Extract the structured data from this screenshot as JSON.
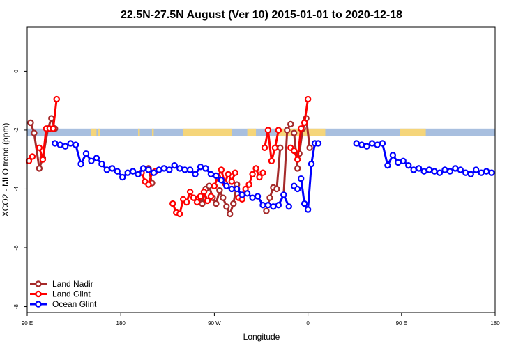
{
  "chart_data": {
    "type": "line",
    "title": "22.5N-27.5N August (Ver 10)   2015-01-01 to 2020-12-18",
    "xlabel": "Longitude",
    "ylabel": "XCO2 - MLO trend (ppm)",
    "xlim": [
      -90,
      180
    ],
    "ylim": [
      -8.2,
      1.5
    ],
    "x_ticks": [
      -90,
      -36,
      18,
      72,
      126,
      180
    ],
    "x_tick_labels": [
      "90 E",
      "180",
      "90 W",
      "0",
      "90 E",
      "180"
    ],
    "y_ticks": [
      0,
      -2,
      -4,
      -6,
      -8
    ],
    "y_tick_labels": [
      "0",
      "-2",
      "-4",
      "-6",
      "-8"
    ],
    "land_band": {
      "y_min": -2.2,
      "y_max": -1.95,
      "ocean_color": "#a8bfdf",
      "land_color": "#f5d57a",
      "land_segments": [
        [
          -53,
          -50
        ],
        [
          -49,
          -48
        ],
        [
          -26,
          -25
        ],
        [
          -18,
          -17
        ],
        [
          0,
          28
        ],
        [
          37,
          42
        ],
        [
          54,
          82
        ],
        [
          125,
          140
        ]
      ]
    },
    "legend": {
      "position": "bottom-left"
    },
    "series": [
      {
        "name": "Land Nadir",
        "color": "#a52a2a",
        "segments": [
          {
            "x": [
              -88,
              -86,
              -83,
              -81,
              -78,
              -76,
              -74
            ],
            "y": [
              -1.75,
              -2.1,
              -3.3,
              -2.95,
              -1.95,
              -1.6,
              -1.95
            ]
          },
          {
            "x": [
              -20,
              -18
            ],
            "y": [
              -3.3,
              -3.8
            ]
          },
          {
            "x": [
              9,
              11,
              13,
              15,
              17,
              19,
              21,
              23,
              25,
              27,
              29,
              31
            ],
            "y": [
              -4.3,
              -4.5,
              -4.0,
              -3.9,
              -4.3,
              -4.5,
              -4.05,
              -4.3,
              -4.6,
              -4.85,
              -4.5,
              -3.85
            ]
          },
          {
            "x": [
              48,
              50,
              52,
              54,
              56
            ],
            "y": [
              -4.75,
              -4.3,
              -3.95,
              -4.0,
              -2.6
            ]
          },
          {
            "x": [
              58,
              60,
              62
            ],
            "y": [
              -4.2,
              -2.0,
              -1.8
            ]
          },
          {
            "x": [
              64,
              66
            ],
            "y": [
              -2.1,
              -3.3
            ]
          },
          {
            "x": [
              67,
              69,
              71,
              73
            ],
            "y": [
              -2.8,
              -1.95,
              -1.6,
              -2.6
            ]
          }
        ]
      },
      {
        "name": "Land Glint",
        "color": "#ff0000",
        "segments": [
          {
            "x": [
              -89,
              -87
            ],
            "y": [
              -3.05,
              -2.9
            ]
          },
          {
            "x": [
              -83,
              -81,
              -79,
              -77,
              -75,
              -73
            ],
            "y": [
              -2.6,
              -3.0,
              -1.95,
              -1.95,
              -1.95,
              -0.95
            ]
          },
          {
            "x": [
              -24,
              -22,
              -20,
              -18,
              -16
            ],
            "y": [
              -3.45,
              -3.75,
              -3.85,
              -3.45,
              -3.4
            ]
          },
          {
            "x": [
              -6,
              -4,
              -2,
              0,
              2,
              4,
              6,
              8,
              10,
              12,
              14,
              16
            ],
            "y": [
              -4.5,
              -4.8,
              -4.85,
              -4.35,
              -4.45,
              -4.1,
              -4.3,
              -4.45,
              -4.25,
              -4.1,
              -4.4,
              -4.25
            ]
          },
          {
            "x": [
              18,
              20,
              22,
              24,
              26,
              28,
              30
            ],
            "y": [
              -3.9,
              -3.6,
              -3.35,
              -3.8,
              -3.5,
              -3.75,
              -3.45
            ]
          },
          {
            "x": [
              32,
              34,
              36,
              38,
              40,
              42,
              44,
              46
            ],
            "y": [
              -4.3,
              -4.35,
              -4.0,
              -3.85,
              -3.5,
              -3.3,
              -3.6,
              -3.45
            ]
          },
          {
            "x": [
              47,
              49,
              51,
              53,
              55
            ],
            "y": [
              -2.6,
              -2.0,
              -3.05,
              -2.6,
              -2.0
            ]
          },
          {
            "x": [
              62,
              64,
              66,
              68,
              70,
              72
            ],
            "y": [
              -2.6,
              -2.7,
              -3.0,
              -1.95,
              -1.75,
              -0.95
            ]
          }
        ]
      },
      {
        "name": "Ocean Glint",
        "color": "#0000ff",
        "segments": [
          {
            "x": [
              -74,
              -71,
              -68,
              -65,
              -62,
              -59,
              -56,
              -53,
              -50,
              -47,
              -44,
              -41,
              -38,
              -35,
              -32,
              -29,
              -26,
              -23,
              -20,
              -17,
              -14,
              -11,
              -8,
              -5,
              -2,
              1
            ],
            "y": [
              -2.45,
              -2.5,
              -2.55,
              -2.45,
              -2.5,
              -3.15,
              -2.8,
              -3.05,
              -2.95,
              -3.15,
              -3.35,
              -3.3,
              -3.4,
              -3.6,
              -3.45,
              -3.4,
              -3.5,
              -3.3,
              -3.35,
              -3.45,
              -3.35,
              -3.3,
              -3.35,
              -3.2,
              -3.3,
              -3.35
            ]
          },
          {
            "x": [
              4,
              7,
              10,
              13,
              16,
              19,
              22,
              25,
              28,
              31,
              34,
              37,
              40,
              43,
              46,
              49
            ],
            "y": [
              -3.35,
              -3.5,
              -3.25,
              -3.3,
              -3.5,
              -3.55,
              -3.7,
              -3.9,
              -4.0,
              -4.0,
              -4.2,
              -4.15,
              -4.3,
              -4.25,
              -4.55,
              -4.55
            ]
          },
          {
            "x": [
              52,
              55,
              58,
              61
            ],
            "y": [
              -4.6,
              -4.55,
              -4.2,
              -4.6
            ]
          },
          {
            "x": [
              64,
              66
            ],
            "y": [
              -3.9,
              -4.0
            ]
          },
          {
            "x": [
              68,
              70,
              72,
              74,
              76,
              78
            ],
            "y": [
              -3.65,
              -4.5,
              -4.7,
              -3.15,
              -2.45,
              -2.45
            ]
          },
          {
            "x": [
              100,
              103,
              106,
              109,
              112,
              115,
              118,
              121,
              124,
              127,
              130,
              133,
              136,
              139,
              142,
              145,
              148,
              151,
              154,
              157,
              160,
              163,
              166,
              169,
              172,
              175,
              178
            ],
            "y": [
              -2.45,
              -2.5,
              -2.55,
              -2.45,
              -2.5,
              -2.45,
              -3.2,
              -2.85,
              -3.1,
              -3.05,
              -3.2,
              -3.35,
              -3.3,
              -3.4,
              -3.35,
              -3.4,
              -3.45,
              -3.35,
              -3.4,
              -3.3,
              -3.35,
              -3.45,
              -3.5,
              -3.35,
              -3.45,
              -3.4,
              -3.45
            ]
          }
        ]
      }
    ]
  }
}
